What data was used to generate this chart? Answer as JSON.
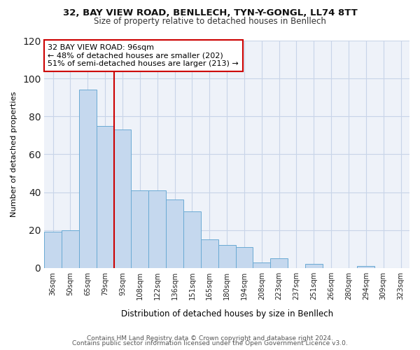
{
  "title": "32, BAY VIEW ROAD, BENLLECH, TYN-Y-GONGL, LL74 8TT",
  "subtitle": "Size of property relative to detached houses in Benllech",
  "xlabel": "Distribution of detached houses by size in Benllech",
  "ylabel": "Number of detached properties",
  "bar_labels": [
    "36sqm",
    "50sqm",
    "65sqm",
    "79sqm",
    "93sqm",
    "108sqm",
    "122sqm",
    "136sqm",
    "151sqm",
    "165sqm",
    "180sqm",
    "194sqm",
    "208sqm",
    "223sqm",
    "237sqm",
    "251sqm",
    "266sqm",
    "280sqm",
    "294sqm",
    "309sqm",
    "323sqm"
  ],
  "bar_values": [
    19,
    20,
    94,
    75,
    73,
    41,
    41,
    36,
    30,
    15,
    12,
    11,
    3,
    5,
    0,
    2,
    0,
    0,
    1,
    0,
    0
  ],
  "highlight_line_index": 4,
  "bar_color": "#c5d8ee",
  "bar_edge_color": "#6aaad4",
  "highlight_line_color": "#cc0000",
  "annotation_text": "32 BAY VIEW ROAD: 96sqm\n← 48% of detached houses are smaller (202)\n51% of semi-detached houses are larger (213) →",
  "annotation_box_facecolor": "#ffffff",
  "annotation_box_edgecolor": "#cc0000",
  "plot_bg_color": "#eef2f9",
  "ylim": [
    0,
    120
  ],
  "yticks": [
    0,
    20,
    40,
    60,
    80,
    100,
    120
  ],
  "footer_line1": "Contains HM Land Registry data © Crown copyright and database right 2024.",
  "footer_line2": "Contains public sector information licensed under the Open Government Licence v3.0."
}
